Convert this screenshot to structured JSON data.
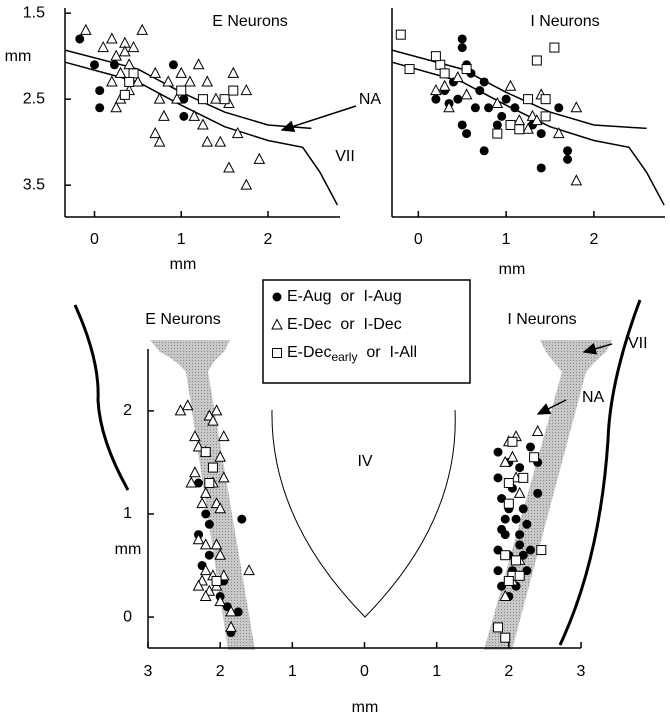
{
  "chart_data": [
    {
      "type": "scatter",
      "title": "E Neurons",
      "xlabel": "mm",
      "ylabel": "mm",
      "xlim": [
        -0.34,
        2.83
      ],
      "ylim": [
        1.44,
        3.87
      ],
      "y_inverted": true,
      "xticks": [
        0,
        1,
        2
      ],
      "yticks": [
        1.5,
        2.5,
        3.5
      ],
      "series": [
        {
          "marker": "circle",
          "x": [
            -0.17,
            0.0,
            0.06,
            0.06,
            0.23,
            0.91,
            1.03,
            1.03
          ],
          "values": [
            1.8,
            2.1,
            2.4,
            2.6,
            2.1,
            2.1,
            2.5,
            2.7
          ]
        },
        {
          "marker": "triangle",
          "x": [
            -0.1,
            0.1,
            0.2,
            0.25,
            0.3,
            0.35,
            0.35,
            0.4,
            0.45,
            0.2,
            0.3,
            0.25,
            0.4,
            0.5,
            0.55,
            0.7,
            0.75,
            0.85,
            0.8,
            0.7,
            0.75,
            0.95,
            1.0,
            1.1,
            1.15,
            1.25,
            1.3,
            1.4,
            1.45,
            1.55,
            1.65,
            1.75,
            1.6,
            1.55,
            1.9,
            1.75,
            1.3,
            1.2
          ],
          "values": [
            1.7,
            1.9,
            1.8,
            2.0,
            2.2,
            1.85,
            1.95,
            2.1,
            1.9,
            2.3,
            2.5,
            2.6,
            2.4,
            2.3,
            1.7,
            2.2,
            2.5,
            2.3,
            2.7,
            2.9,
            3.0,
            2.5,
            2.2,
            2.3,
            2.7,
            2.8,
            3.0,
            2.5,
            3.0,
            3.3,
            2.9,
            2.4,
            2.2,
            2.55,
            3.2,
            3.5,
            2.3,
            2.1
          ]
        },
        {
          "marker": "square",
          "x": [
            0.45,
            0.4,
            1.25,
            1.5,
            1.6,
            1.0,
            0.35
          ],
          "values": [
            2.2,
            2.3,
            2.5,
            2.5,
            2.4,
            2.4,
            2.45
          ]
        }
      ],
      "curves": [
        {
          "label": "NA",
          "x": [
            -0.34,
            0.5,
            1.0,
            1.5,
            2.0,
            2.5
          ],
          "y": [
            1.93,
            2.15,
            2.42,
            2.65,
            2.8,
            2.84
          ]
        },
        {
          "label": "VII",
          "x": [
            -0.34,
            0.5,
            1.0,
            1.5,
            2.0,
            2.4,
            2.6,
            2.8
          ],
          "y": [
            2.07,
            2.3,
            2.57,
            2.82,
            2.98,
            3.06,
            3.35,
            3.73
          ]
        }
      ]
    },
    {
      "type": "scatter",
      "title": "I Neurons",
      "xlabel": "mm",
      "xlim": [
        -0.3,
        2.81
      ],
      "ylim": [
        1.44,
        3.87
      ],
      "y_inverted": true,
      "xticks": [
        0,
        1,
        2
      ],
      "series": [
        {
          "marker": "circle",
          "x": [
            0.5,
            0.5,
            0.55,
            0.6,
            0.4,
            0.2,
            0.3,
            0.35,
            0.45,
            0.5,
            0.55,
            0.65,
            0.7,
            0.75,
            0.8,
            0.9,
            0.95,
            0.75,
            1.0,
            1.1,
            1.3,
            1.4,
            1.6,
            1.7,
            1.7,
            1.4
          ],
          "values": [
            1.8,
            1.9,
            2.1,
            2.2,
            2.3,
            2.5,
            2.4,
            2.55,
            2.5,
            2.8,
            2.9,
            2.6,
            2.4,
            2.3,
            2.6,
            2.8,
            2.7,
            3.1,
            2.5,
            2.6,
            2.8,
            3.3,
            2.6,
            3.1,
            3.2,
            2.9
          ]
        },
        {
          "marker": "triangle",
          "x": [
            0.2,
            0.3,
            0.35,
            0.45,
            0.55,
            0.9,
            1.05,
            1.15,
            1.25,
            1.3,
            1.4,
            1.6,
            1.8,
            1.8,
            1.35
          ],
          "values": [
            2.4,
            2.35,
            2.6,
            2.25,
            2.45,
            2.55,
            2.35,
            2.75,
            2.85,
            2.7,
            2.45,
            2.9,
            2.6,
            3.45,
            2.75
          ]
        },
        {
          "marker": "square",
          "x": [
            -0.2,
            -0.1,
            0.25,
            0.3,
            0.55,
            0.9,
            1.05,
            1.15,
            1.25,
            1.35,
            1.45,
            1.55,
            1.45,
            0.2
          ],
          "values": [
            1.75,
            2.15,
            2.1,
            2.2,
            2.15,
            2.9,
            2.8,
            2.85,
            2.5,
            2.05,
            2.5,
            1.9,
            2.7,
            2.0
          ]
        }
      ],
      "curves": [
        {
          "x": [
            -0.3,
            0.5,
            1.0,
            1.5,
            2.0,
            2.6
          ],
          "y": [
            1.93,
            2.15,
            2.42,
            2.65,
            2.8,
            2.84
          ]
        },
        {
          "x": [
            -0.3,
            0.5,
            1.0,
            1.5,
            2.0,
            2.4,
            2.6,
            2.8
          ],
          "y": [
            2.07,
            2.3,
            2.57,
            2.82,
            2.98,
            3.06,
            3.35,
            3.73
          ]
        }
      ]
    },
    {
      "type": "scatter",
      "xlabel": "mm",
      "ylabel": "mm",
      "xlim": [
        -3,
        3
      ],
      "ylim": [
        -0.3,
        2.6
      ],
      "xticks": [
        {
          "value": -3,
          "label": "3"
        },
        {
          "value": -2,
          "label": "2"
        },
        {
          "value": -1,
          "label": "1"
        },
        0,
        1,
        2,
        3
      ],
      "yticks": [
        0,
        1,
        2
      ],
      "annotations": [
        "E Neurons",
        "I Neurons",
        "IV",
        "VII",
        "NA"
      ],
      "legend": "top-center",
      "series": [
        {
          "name": "E-Aug  or  I-Aug",
          "marker": "circle",
          "x": [
            -1.85,
            -1.75,
            -1.9,
            -2.0,
            -1.95,
            -2.15,
            -2.3,
            -2.15,
            -2.2,
            -2.3,
            -1.7,
            -2.25,
            1.85,
            2.0,
            2.05,
            2.15,
            2.4,
            2.4,
            2.3,
            1.85,
            1.9,
            2.0,
            2.1,
            2.25,
            2.15,
            1.95,
            1.85,
            2.0,
            2.15,
            2.3,
            1.85,
            2.05,
            2.25,
            1.9,
            2.1,
            2.0,
            2.2,
            1.95,
            2.2,
            1.9
          ],
          "values": [
            -0.15,
            0.05,
            0.1,
            0.2,
            0.35,
            0.6,
            0.8,
            0.9,
            1.0,
            1.3,
            0.95,
            0.5,
            1.35,
            1.5,
            1.25,
            1.45,
            1.2,
            1.5,
            1.65,
            1.6,
            1.15,
            1.05,
            0.95,
            0.9,
            0.8,
            0.8,
            0.65,
            0.6,
            0.7,
            0.65,
            0.45,
            0.45,
            0.45,
            0.3,
            0.3,
            0.2,
            0.6,
            0.95,
            1.05,
            0.85
          ]
        },
        {
          "name": "E-Dec  or  I-Dec",
          "marker": "triangle",
          "x": [
            -2.45,
            -2.55,
            -2.15,
            -2.05,
            -2.1,
            -2.35,
            -1.95,
            -2.3,
            -2.2,
            -2.0,
            -2.35,
            -2.4,
            -2.1,
            -1.95,
            -2.2,
            -2.25,
            -2.05,
            -2.0,
            -2.3,
            -2.2,
            -2.05,
            -2.0,
            -2.2,
            -2.1,
            -2.25,
            -2.3,
            -2.15,
            -1.95,
            -2.05,
            -1.6,
            -2.2,
            -1.85,
            -1.85,
            -2.0,
            2.4,
            2.1,
            2.05,
            2.1,
            1.95,
            2.05,
            1.95,
            2.15,
            2.15,
            2.0
          ],
          "values": [
            2.05,
            2.0,
            1.95,
            2.0,
            1.9,
            1.75,
            1.75,
            1.65,
            1.6,
            1.55,
            1.4,
            1.3,
            1.3,
            1.35,
            1.2,
            1.1,
            1.1,
            1.05,
            0.75,
            0.7,
            0.7,
            0.6,
            0.45,
            0.4,
            0.35,
            0.3,
            0.25,
            0.4,
            0.3,
            0.45,
            0.2,
            0.05,
            -0.1,
            0.15,
            1.8,
            1.75,
            1.55,
            1.35,
            1.5,
            0.35,
            0.2,
            0.55,
            1.2,
            1.7
          ]
        },
        {
          "name": "E-Dec",
          "name_subscript": "early",
          "name_suffix": "  or  I-All",
          "marker": "square",
          "x": [
            -2.1,
            -2.2,
            -2.15,
            -2.05,
            2.05,
            2.35,
            2.0,
            2.2,
            2.0,
            2.45,
            2.1,
            2.05,
            2.15,
            1.95,
            1.85,
            1.95,
            2.0
          ],
          "values": [
            1.45,
            1.6,
            1.3,
            0.35,
            1.7,
            1.55,
            1.3,
            1.35,
            1.1,
            0.65,
            0.55,
            0.4,
            0.4,
            0.6,
            -0.1,
            -0.2,
            0.35
          ]
        }
      ]
    }
  ]
}
